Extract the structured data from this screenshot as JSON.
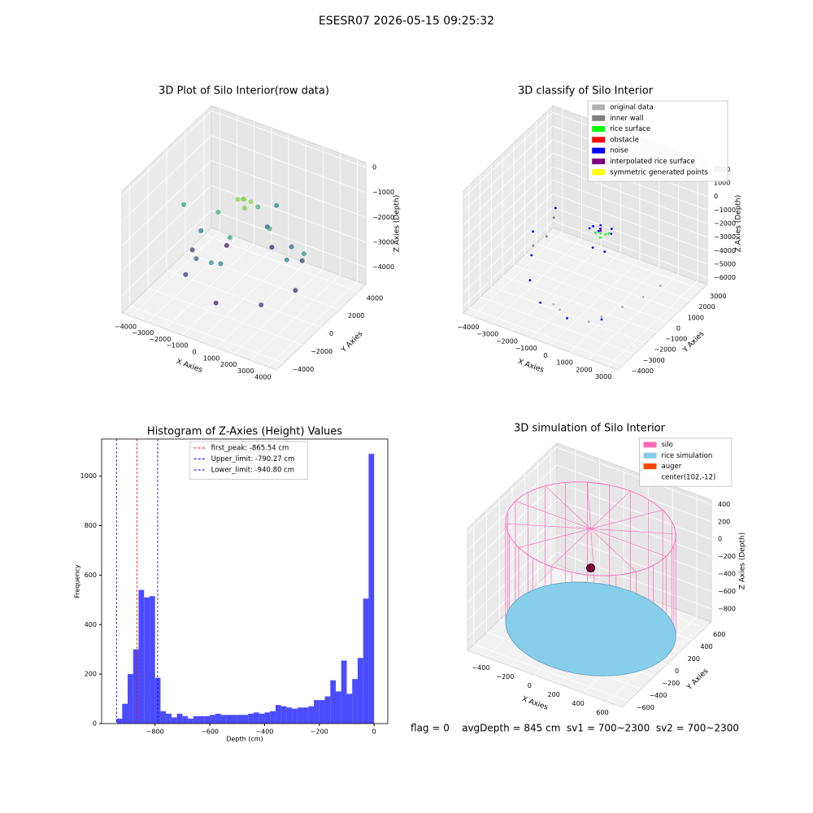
{
  "title": "ESESR07 2026-05-15 09:25:32",
  "footer": "flag = 0    avgDepth = 845 cm  sv1 = 700~2300  sv2 = 700~2300",
  "chart_data": [
    {
      "type": "scatter3d",
      "title": "3D Plot of Silo Interior(row data)",
      "x_label": "X Axies",
      "y_label": "Y Axies",
      "z_label": "Z Axies (Depth)",
      "xlim": [
        -4500,
        4500
      ],
      "ylim": [
        -4800,
        4800
      ],
      "zlim": [
        -4700,
        200
      ],
      "xticks": [
        {
          "value": -4000,
          "label": "−4000"
        },
        {
          "value": -3000,
          "label": "−3000"
        },
        {
          "value": -2000,
          "label": "−2000"
        },
        {
          "value": -1000,
          "label": "−1000"
        },
        0,
        1000,
        2000,
        3000,
        4000
      ],
      "yticks": [
        {
          "value": -4000,
          "label": "−4000"
        },
        {
          "value": -2000,
          "label": "−2000"
        },
        0,
        2000,
        4000
      ],
      "zticks": [
        0,
        {
          "value": -1000,
          "label": "−1000"
        },
        {
          "value": -2000,
          "label": "−2000"
        },
        {
          "value": -3000,
          "label": "−3000"
        },
        {
          "value": -4000,
          "label": "−4000"
        }
      ],
      "colormap": "viridis",
      "points": {
        "x": [
          0,
          300,
          -300,
          200,
          -200,
          1500,
          -1500,
          0,
          0,
          2500,
          -2500,
          0,
          0,
          1800,
          -1800,
          3000,
          -3000,
          0,
          0,
          2200,
          -2200,
          2200,
          -2200,
          3500,
          -3500,
          0,
          0
        ],
        "y": [
          0,
          200,
          -100,
          -300,
          300,
          0,
          0,
          1500,
          -1500,
          0,
          0,
          2500,
          -2500,
          1800,
          -1800,
          0,
          0,
          3000,
          -3000,
          2200,
          -2200,
          -2200,
          2200,
          0,
          0,
          3500,
          -3500
        ],
        "z": [
          -700,
          -800,
          -750,
          -900,
          -850,
          -1500,
          -1600,
          -1550,
          -1700,
          -2500,
          -2600,
          -2700,
          -2400,
          -2800,
          -2900,
          -3600,
          -3500,
          -3700,
          -3800,
          -3400,
          -3500,
          -3600,
          -3900,
          -2000,
          -1800,
          -2200,
          -2000
        ]
      }
    },
    {
      "type": "scatter3d",
      "title": "3D classify of Silo Interior",
      "x_label": "X Axies",
      "y_label": "Y Axies",
      "z_label": "Z Axies (Depth)",
      "xlim": [
        -4500,
        3500
      ],
      "ylim": [
        -4500,
        3500
      ],
      "zlim": [
        -6500,
        2500
      ],
      "xticks": [
        {
          "value": -4000,
          "label": "−4000"
        },
        {
          "value": -3000,
          "label": "−3000"
        },
        {
          "value": -2000,
          "label": "−2000"
        },
        {
          "value": -1000,
          "label": "−1000"
        },
        0,
        1000,
        2000,
        3000
      ],
      "yticks": [
        {
          "value": -4000,
          "label": "−4000"
        },
        {
          "value": -3000,
          "label": "−3000"
        },
        {
          "value": -2000,
          "label": "−2000"
        },
        {
          "value": -1000,
          "label": "−1000"
        },
        0,
        1000,
        2000,
        3000
      ],
      "zticks": [
        2000,
        1000,
        0,
        {
          "value": -1000,
          "label": "−1000"
        },
        {
          "value": -2000,
          "label": "−2000"
        },
        {
          "value": -3000,
          "label": "−3000"
        },
        {
          "value": -4000,
          "label": "−4000"
        },
        {
          "value": -5000,
          "label": "−5000"
        },
        {
          "value": -6000,
          "label": "−6000"
        }
      ],
      "legend": "upper right",
      "series": [
        {
          "name": "original data",
          "color": "#b0b0b0",
          "x": [
            2000,
            2500,
            1500,
            -1000,
            -500,
            2800,
            1000
          ],
          "y": [
            -1500,
            -500,
            -2500,
            -2500,
            -2800,
            500,
            -2800
          ],
          "z": [
            -5000,
            -4800,
            -5200,
            -5600,
            -5500,
            -4600,
            -5600
          ]
        },
        {
          "name": "inner wall",
          "color": "#808080",
          "x": [
            -3000,
            -2800,
            -3200
          ],
          "y": [
            1000,
            0,
            -500
          ],
          "z": [
            -3000,
            -3500,
            -4000
          ]
        },
        {
          "name": "rice surface",
          "color": "#00ff00",
          "x": [
            0,
            200,
            -200,
            100,
            300
          ],
          "y": [
            0,
            100,
            -100,
            -200,
            200
          ],
          "z": [
            -1800,
            -1850,
            -1780,
            -1900,
            -1820
          ]
        },
        {
          "name": "obstacle",
          "color": "#ff0000",
          "x": [],
          "y": [],
          "z": []
        },
        {
          "name": "noise",
          "color": "#0000ff",
          "x": [
            0,
            400,
            -400,
            200,
            -300,
            500,
            -500,
            0,
            -3200,
            -3000,
            -2500,
            -1500,
            0,
            1500,
            -3500,
            -800
          ],
          "y": [
            0,
            300,
            -300,
            600,
            500,
            -500,
            200,
            -700,
            1500,
            -1000,
            -2000,
            -2800,
            -3000,
            -2500,
            0,
            1200
          ],
          "z": [
            -1200,
            -1500,
            -1400,
            -2200,
            -2000,
            -2500,
            -1700,
            -2300,
            -2800,
            -4200,
            -5000,
            -5500,
            -5700,
            -5400,
            -3500,
            -3000
          ]
        },
        {
          "name": "interpolated rice surface",
          "color": "#800080",
          "x": [
            0
          ],
          "y": [
            0
          ],
          "z": [
            -1600
          ]
        },
        {
          "name": "symmetric generated points",
          "color": "#ffff00",
          "x": [],
          "y": [],
          "z": []
        }
      ]
    },
    {
      "type": "histogram",
      "title": "Histogram of Z-Axies (Height) Values",
      "x_label": "Depth (cm)",
      "y_label": "Frequency",
      "color": "#4b4bff",
      "xlim": [
        -995,
        50
      ],
      "ylim": [
        0,
        1150
      ],
      "xticks": [
        {
          "value": -800,
          "label": "−800"
        },
        {
          "value": -600,
          "label": "−600"
        },
        {
          "value": -400,
          "label": "−400"
        },
        {
          "value": -200,
          "label": "−200"
        },
        0
      ],
      "yticks": [
        0,
        200,
        400,
        600,
        800,
        1000
      ],
      "bins": [
        -940,
        -920,
        -900,
        -880,
        -860,
        -840,
        -820,
        -800,
        -780,
        -760,
        -740,
        -720,
        -700,
        -680,
        -660,
        -640,
        -620,
        -600,
        -580,
        -560,
        -540,
        -520,
        -500,
        -480,
        -460,
        -440,
        -420,
        -400,
        -380,
        -360,
        -340,
        -320,
        -300,
        -280,
        -260,
        -240,
        -220,
        -200,
        -180,
        -160,
        -140,
        -120,
        -100,
        -80,
        -60,
        -40,
        -20,
        0
      ],
      "values": [
        20,
        80,
        200,
        300,
        540,
        510,
        515,
        185,
        50,
        40,
        25,
        40,
        30,
        20,
        30,
        30,
        30,
        35,
        40,
        35,
        35,
        35,
        35,
        35,
        40,
        45,
        40,
        45,
        50,
        75,
        70,
        65,
        60,
        65,
        65,
        70,
        95,
        95,
        110,
        175,
        130,
        255,
        120,
        180,
        265,
        505,
        1090
      ],
      "legend": "upper center",
      "lines": [
        {
          "name": "first_peak: -865.54 cm",
          "value": -865.54,
          "color": "#ff0000"
        },
        {
          "name": "Upper_limit: -790.27 cm",
          "value": -790.27,
          "color": "#0000cc"
        },
        {
          "name": "Lower_limit: -940.80 cm",
          "value": -940.8,
          "color": "#0000cc"
        }
      ]
    },
    {
      "type": "scatter3d",
      "title": "3D simulation of Silo Interior",
      "x_label": "X Axies",
      "y_label": "Y Axies",
      "z_label": "Z Axies (Depth)",
      "xlim": [
        -550,
        720
      ],
      "ylim": [
        -700,
        700
      ],
      "zlim": [
        -950,
        450
      ],
      "xticks": [
        {
          "value": -400,
          "label": "−400"
        },
        {
          "value": -200,
          "label": "−200"
        },
        0,
        200,
        400,
        600
      ],
      "yticks": [
        {
          "value": -600,
          "label": "−600"
        },
        {
          "value": -400,
          "label": "−400"
        },
        {
          "value": -200,
          "label": "−200"
        },
        0,
        200,
        400,
        600
      ],
      "zticks": [
        400,
        200,
        0,
        {
          "value": -200,
          "label": "−200"
        },
        {
          "value": -400,
          "label": "−400"
        },
        {
          "value": -600,
          "label": "−600"
        },
        {
          "value": -800,
          "label": "−800"
        }
      ],
      "legend": "upper right",
      "series": [
        {
          "name": "silo",
          "color": "#ff69b4",
          "shape": "cylinder",
          "x": 102,
          "y": -12,
          "radius": 620,
          "z": [
            -850,
            300
          ]
        },
        {
          "name": "rice simulation",
          "color": "#87ceeb",
          "shape": "disc",
          "x": 102,
          "y": -12,
          "radius": 620,
          "z": -850
        },
        {
          "name": "auger",
          "color": "#ff4500",
          "shape": "point",
          "x": 102,
          "y": -12,
          "z": -150
        }
      ],
      "annotation": "center(102,-12)"
    }
  ]
}
